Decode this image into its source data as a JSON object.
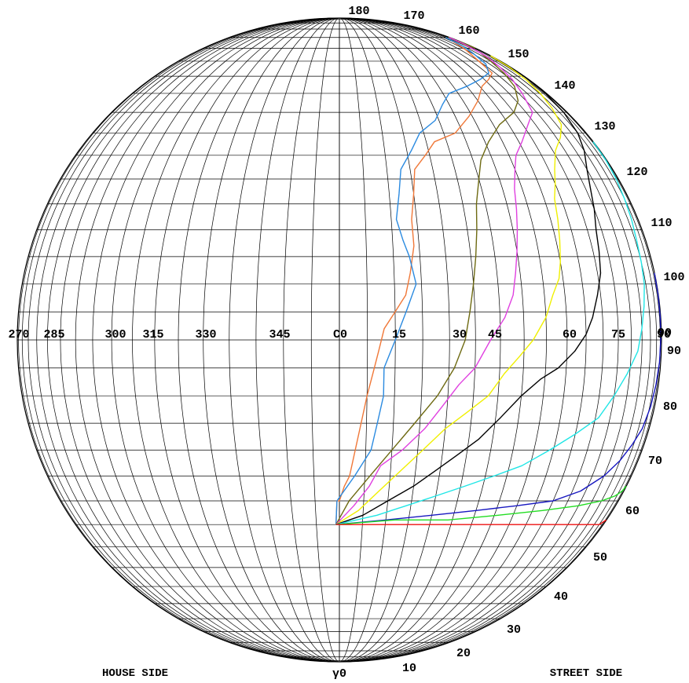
{
  "chart_data": {
    "type": "line",
    "projection": "polar isocandela diagram (C-gamma)",
    "labels": {
      "c_center": "C0",
      "gamma_zero": "γ0",
      "house_side": "HOUSE SIDE",
      "street_side": "STREET SIDE"
    },
    "c_planes": [
      "270",
      "285",
      "300",
      "315",
      "330",
      "345",
      "C0",
      "15",
      "30",
      "45",
      "60",
      "75",
      "90"
    ],
    "c_plane_values": [
      270,
      285,
      300,
      315,
      330,
      345,
      0,
      15,
      30,
      45,
      60,
      75,
      90
    ],
    "gamma_labels": [
      "10",
      "20",
      "30",
      "40",
      "50",
      "60",
      "70",
      "80",
      "90",
      "90",
      "100",
      "110",
      "120",
      "130",
      "140",
      "150",
      "160",
      "170",
      "180"
    ],
    "gamma_label_values": [
      10,
      20,
      30,
      40,
      50,
      60,
      70,
      80,
      90,
      90,
      100,
      110,
      120,
      130,
      140,
      150,
      160,
      170,
      180
    ],
    "colors": {
      "grid": "#000000",
      "orange": "#f07838",
      "lightblue": "#2a8ae0",
      "olive": "#6e6a12",
      "magenta": "#e040e0",
      "yellow": "#f0f000",
      "black": "#000000",
      "cyan": "#20e6e6",
      "blue": "#1818c0",
      "green": "#22dd22",
      "red": "#ee1111"
    },
    "series": [
      {
        "color": "#f07838",
        "points": [
          [
            -0.74,
            125
          ],
          [
            -0.5,
            120
          ],
          [
            0,
            120
          ],
          [
            1,
            117
          ],
          [
            2,
            115
          ],
          [
            3,
            110
          ],
          [
            4,
            105
          ],
          [
            5,
            100
          ],
          [
            6,
            96
          ],
          [
            7,
            92
          ],
          [
            8,
            88
          ],
          [
            10,
            85
          ],
          [
            12,
            82
          ],
          [
            13,
            78
          ],
          [
            14,
            73
          ],
          [
            14,
            68
          ],
          [
            15,
            63
          ],
          [
            16,
            58
          ],
          [
            19,
            55
          ],
          [
            22,
            52
          ],
          [
            28,
            50
          ],
          [
            34,
            46
          ],
          [
            40,
            42
          ],
          [
            46,
            38
          ],
          [
            52,
            36
          ],
          [
            58,
            34
          ],
          [
            60,
            30
          ],
          [
            63,
            27
          ],
          [
            66,
            25
          ],
          [
            70,
            22
          ]
        ]
      },
      {
        "color": "#2a8ae0",
        "points": [
          [
            -0.74,
            125
          ],
          [
            -0.5,
            120
          ],
          [
            3,
            115
          ],
          [
            6,
            110
          ],
          [
            7,
            105
          ],
          [
            8,
            100
          ],
          [
            8,
            95
          ],
          [
            10,
            90
          ],
          [
            12,
            85
          ],
          [
            14,
            80
          ],
          [
            13,
            75
          ],
          [
            12,
            72
          ],
          [
            11,
            68
          ],
          [
            12,
            63
          ],
          [
            13,
            58
          ],
          [
            16,
            54
          ],
          [
            19,
            50
          ],
          [
            24,
            47
          ],
          [
            28,
            43
          ],
          [
            32,
            40
          ],
          [
            40,
            38
          ],
          [
            48,
            36
          ],
          [
            56,
            34
          ],
          [
            62,
            31
          ],
          [
            66,
            27
          ],
          [
            70,
            24
          ],
          [
            75,
            20
          ]
        ]
      },
      {
        "color": "#6e6a12",
        "points": [
          [
            -0.74,
            125
          ],
          [
            2,
            120
          ],
          [
            6,
            115
          ],
          [
            10,
            110
          ],
          [
            14,
            105
          ],
          [
            18,
            100
          ],
          [
            21,
            95
          ],
          [
            23,
            90
          ],
          [
            24,
            85
          ],
          [
            25,
            80
          ],
          [
            26,
            75
          ],
          [
            27,
            70
          ],
          [
            28,
            65
          ],
          [
            30,
            60
          ],
          [
            32,
            56
          ],
          [
            36,
            52
          ],
          [
            42,
            48
          ],
          [
            50,
            45
          ],
          [
            56,
            42
          ],
          [
            62,
            38
          ],
          [
            66,
            34
          ],
          [
            70,
            30
          ],
          [
            75,
            27
          ],
          [
            80,
            22
          ],
          [
            82,
            20
          ],
          [
            85,
            23
          ],
          [
            88,
            25
          ]
        ]
      },
      {
        "color": "#e040e0",
        "points": [
          [
            -0.74,
            125
          ],
          [
            3,
            121
          ],
          [
            6,
            117
          ],
          [
            8,
            113
          ],
          [
            12,
            110
          ],
          [
            16,
            106
          ],
          [
            19,
            102
          ],
          [
            22,
            98
          ],
          [
            25,
            95
          ],
          [
            28,
            90
          ],
          [
            31,
            86
          ],
          [
            33,
            82
          ],
          [
            34,
            78
          ],
          [
            35,
            74
          ],
          [
            36,
            70
          ],
          [
            37,
            66
          ],
          [
            38,
            62
          ],
          [
            40,
            58
          ],
          [
            42,
            55
          ],
          [
            46,
            52
          ],
          [
            52,
            48
          ],
          [
            58,
            45
          ],
          [
            62,
            40
          ],
          [
            66,
            36
          ],
          [
            70,
            32
          ],
          [
            75,
            28
          ],
          [
            80,
            23
          ],
          [
            85,
            20
          ]
        ]
      },
      {
        "color": "#f0f000",
        "points": [
          [
            -0.74,
            125
          ],
          [
            4,
            122
          ],
          [
            8,
            118
          ],
          [
            12,
            114
          ],
          [
            16,
            110
          ],
          [
            20,
            106
          ],
          [
            24,
            103
          ],
          [
            28,
            100
          ],
          [
            31,
            96
          ],
          [
            34,
            93
          ],
          [
            37,
            90
          ],
          [
            40,
            86
          ],
          [
            42,
            82
          ],
          [
            44,
            79
          ],
          [
            45,
            76
          ],
          [
            46,
            72
          ],
          [
            47,
            68
          ],
          [
            48,
            64
          ],
          [
            50,
            61
          ],
          [
            52,
            58
          ],
          [
            56,
            54
          ],
          [
            62,
            51
          ],
          [
            68,
            48
          ],
          [
            72,
            44
          ],
          [
            76,
            40
          ],
          [
            80,
            36
          ],
          [
            84,
            32
          ],
          [
            88,
            28
          ]
        ]
      },
      {
        "color": "#000000",
        "points": [
          [
            -0.74,
            125
          ],
          [
            5,
            123
          ],
          [
            10,
            120
          ],
          [
            15,
            117
          ],
          [
            19,
            114
          ],
          [
            23,
            111
          ],
          [
            27,
            108
          ],
          [
            31,
            104
          ],
          [
            35,
            100
          ],
          [
            39,
            97
          ],
          [
            43,
            95
          ],
          [
            47,
            92
          ],
          [
            50,
            89
          ],
          [
            52,
            86
          ],
          [
            54,
            82
          ],
          [
            56,
            78
          ],
          [
            57,
            74
          ],
          [
            58,
            70
          ],
          [
            60,
            66
          ],
          [
            62,
            62
          ],
          [
            65,
            58
          ],
          [
            70,
            54
          ],
          [
            75,
            50
          ],
          [
            80,
            45
          ],
          [
            84,
            40
          ],
          [
            88,
            35
          ]
        ]
      },
      {
        "color": "#20e6e6",
        "points": [
          [
            -0.74,
            125
          ],
          [
            8,
            123
          ],
          [
            14,
            121
          ],
          [
            20,
            119
          ],
          [
            26,
            117
          ],
          [
            32,
            115
          ],
          [
            38,
            113
          ],
          [
            44,
            110
          ],
          [
            50,
            107
          ],
          [
            56,
            104
          ],
          [
            60,
            100
          ],
          [
            64,
            96
          ],
          [
            68,
            92
          ],
          [
            70,
            88
          ],
          [
            72,
            84
          ],
          [
            74,
            80
          ],
          [
            75,
            76
          ],
          [
            76,
            72
          ],
          [
            78,
            68
          ],
          [
            80,
            64
          ],
          [
            83,
            60
          ],
          [
            86,
            56
          ],
          [
            88,
            52
          ]
        ]
      },
      {
        "color": "#1818c0",
        "points": [
          [
            -0.74,
            125
          ],
          [
            10,
            124
          ],
          [
            20,
            123
          ],
          [
            30,
            122
          ],
          [
            40,
            121
          ],
          [
            50,
            120
          ],
          [
            58,
            118
          ],
          [
            65,
            115
          ],
          [
            70,
            112
          ],
          [
            74,
            109
          ],
          [
            78,
            106
          ],
          [
            81,
            102
          ],
          [
            83,
            98
          ],
          [
            85,
            94
          ],
          [
            86,
            90
          ],
          [
            87,
            86
          ],
          [
            88,
            82
          ],
          [
            89,
            78
          ]
        ]
      },
      {
        "color": "#22dd22",
        "points": [
          [
            -0.74,
            125
          ],
          [
            12,
            124
          ],
          [
            24,
            124
          ],
          [
            36,
            123
          ],
          [
            48,
            122
          ],
          [
            60,
            121
          ],
          [
            70,
            120
          ],
          [
            78,
            119
          ],
          [
            84,
            118
          ],
          [
            88,
            117
          ]
        ]
      },
      {
        "color": "#ee1111",
        "points": [
          [
            -0.74,
            125
          ],
          [
            20,
            125
          ],
          [
            40,
            125
          ],
          [
            60,
            125
          ],
          [
            80,
            125
          ],
          [
            88,
            124
          ]
        ]
      }
    ]
  }
}
